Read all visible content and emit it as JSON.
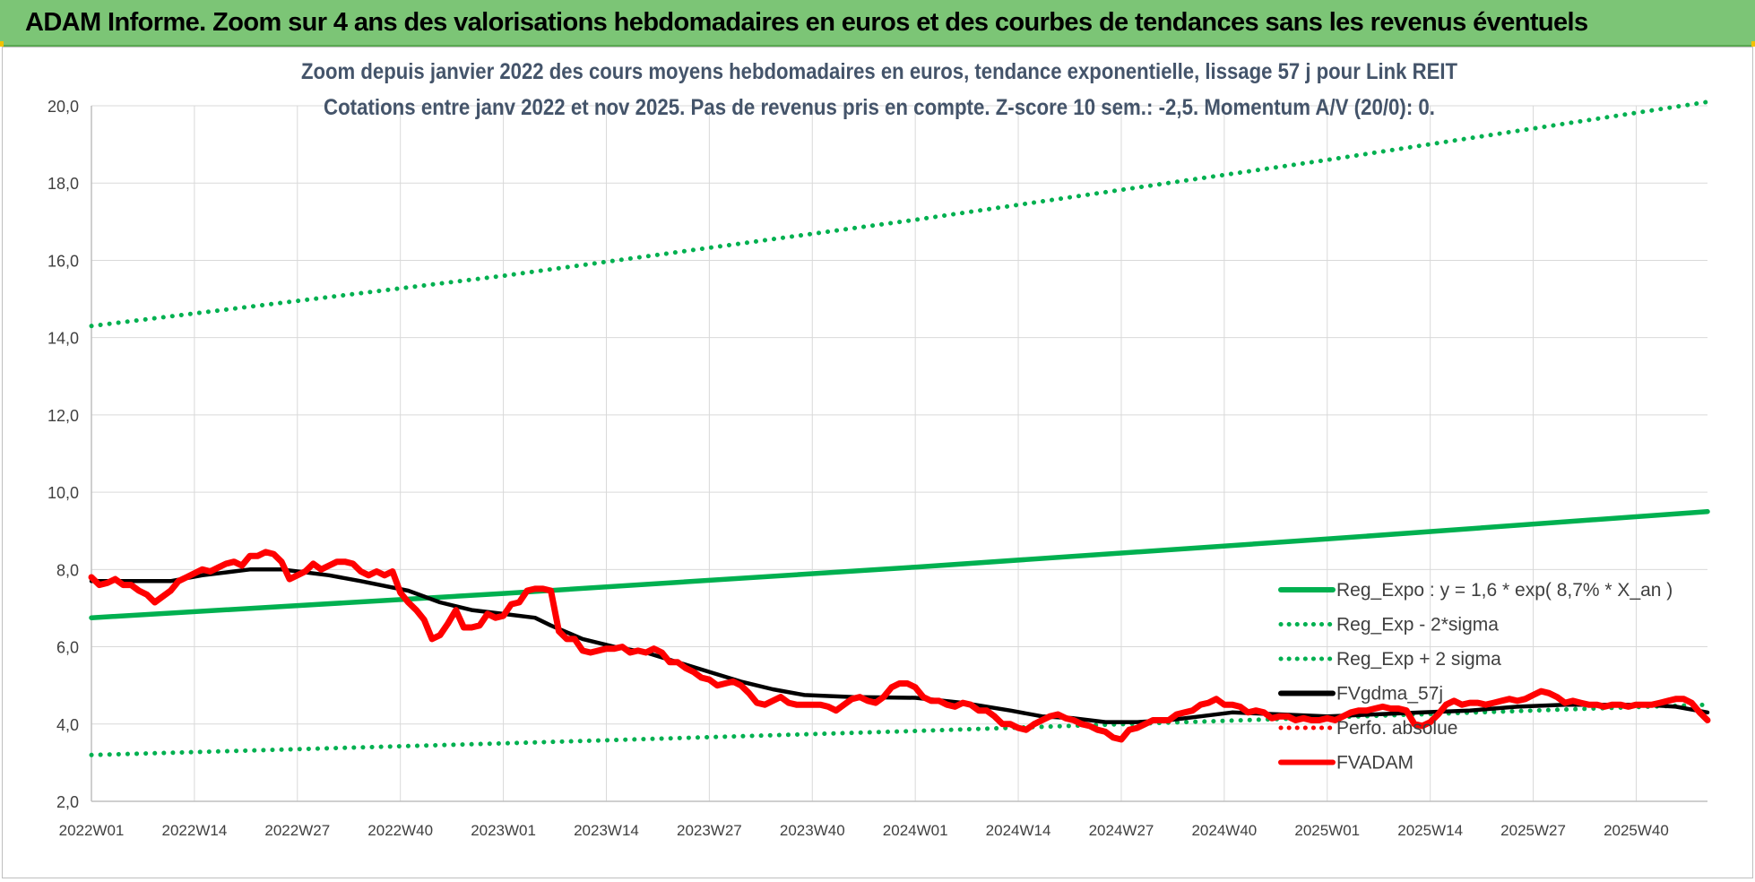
{
  "banner": {
    "title": "ADAM Informe. Zoom sur 4 ans des valorisations hebdomadaires en euros et des courbes de tendances sans les revenus éventuels"
  },
  "chart_data": {
    "type": "line",
    "title": "Zoom depuis janvier 2022 des cours moyens hebdomadaires en euros, tendance exponentielle, lissage 57 j pour Link REIT",
    "subtitle": "Cotations entre janv 2022 et nov 2025. Pas de revenus pris en compte. Z-score 10 sem.: -2,5. Momentum A/V (20/0): 0.",
    "xlabel": "",
    "ylabel": "",
    "ylim": [
      2.0,
      20.0
    ],
    "y_ticks": [
      "2,0",
      "4,0",
      "6,0",
      "8,0",
      "10,0",
      "12,0",
      "14,0",
      "16,0",
      "18,0",
      "20,0"
    ],
    "x_ticks": [
      "2022W01",
      "2022W14",
      "2022W27",
      "2022W40",
      "2023W01",
      "2023W14",
      "2023W27",
      "2023W40",
      "2024W01",
      "2024W14",
      "2024W27",
      "2024W40",
      "2025W01",
      "2025W14",
      "2025W27",
      "2025W40"
    ],
    "x_tick_weeks": [
      0,
      13,
      26,
      39,
      52,
      65,
      78,
      91,
      104,
      117,
      130,
      143,
      156,
      169,
      182,
      195
    ],
    "x_range_weeks": [
      0,
      204
    ],
    "grid": true,
    "legend": "right",
    "series": [
      {
        "name": "Reg_Expo : y = 1,6 * exp( 8,7% *  X_an )",
        "color": "#00b050",
        "style": "solid",
        "points": [
          [
            0,
            6.75
          ],
          [
            52,
            7.38
          ],
          [
            104,
            8.06
          ],
          [
            156,
            8.79
          ],
          [
            204,
            9.5
          ]
        ]
      },
      {
        "name": "Reg_Exp - 2*sigma",
        "color": "#00b050",
        "style": "dotted",
        "points": [
          [
            0,
            3.2
          ],
          [
            52,
            3.5
          ],
          [
            104,
            3.82
          ],
          [
            156,
            4.17
          ],
          [
            204,
            4.5
          ]
        ]
      },
      {
        "name": "Reg_Exp + 2 sigma",
        "color": "#00b050",
        "style": "dotted",
        "points": [
          [
            0,
            14.3
          ],
          [
            52,
            15.6
          ],
          [
            104,
            17.05
          ],
          [
            156,
            18.6
          ],
          [
            204,
            20.1
          ]
        ]
      },
      {
        "name": "FVgdma_57j",
        "color": "#000000",
        "style": "solid",
        "points": [
          [
            0,
            7.7
          ],
          [
            10,
            7.7
          ],
          [
            14,
            7.85
          ],
          [
            20,
            8.0
          ],
          [
            24,
            8.0
          ],
          [
            30,
            7.85
          ],
          [
            34,
            7.7
          ],
          [
            40,
            7.45
          ],
          [
            44,
            7.15
          ],
          [
            48,
            6.95
          ],
          [
            52,
            6.85
          ],
          [
            56,
            6.75
          ],
          [
            58,
            6.55
          ],
          [
            62,
            6.2
          ],
          [
            66,
            6.0
          ],
          [
            70,
            5.85
          ],
          [
            74,
            5.6
          ],
          [
            78,
            5.35
          ],
          [
            82,
            5.1
          ],
          [
            86,
            4.9
          ],
          [
            90,
            4.75
          ],
          [
            96,
            4.7
          ],
          [
            104,
            4.68
          ],
          [
            110,
            4.55
          ],
          [
            116,
            4.35
          ],
          [
            120,
            4.2
          ],
          [
            124,
            4.15
          ],
          [
            128,
            4.05
          ],
          [
            132,
            4.05
          ],
          [
            136,
            4.1
          ],
          [
            140,
            4.2
          ],
          [
            144,
            4.3
          ],
          [
            150,
            4.25
          ],
          [
            156,
            4.2
          ],
          [
            162,
            4.25
          ],
          [
            168,
            4.3
          ],
          [
            174,
            4.35
          ],
          [
            180,
            4.45
          ],
          [
            186,
            4.5
          ],
          [
            192,
            4.5
          ],
          [
            196,
            4.5
          ],
          [
            200,
            4.45
          ],
          [
            204,
            4.3
          ]
        ]
      },
      {
        "name": "Perfo. absolue",
        "color": "#ff0000",
        "style": "dotted",
        "points": []
      },
      {
        "name": "FVADAM",
        "color": "#ff0000",
        "style": "solid",
        "points": [
          [
            0,
            7.8
          ],
          [
            1,
            7.6
          ],
          [
            2,
            7.65
          ],
          [
            3,
            7.75
          ],
          [
            4,
            7.6
          ],
          [
            5,
            7.6
          ],
          [
            6,
            7.45
          ],
          [
            7,
            7.35
          ],
          [
            8,
            7.15
          ],
          [
            9,
            7.3
          ],
          [
            10,
            7.45
          ],
          [
            11,
            7.7
          ],
          [
            12,
            7.8
          ],
          [
            13,
            7.9
          ],
          [
            14,
            8.0
          ],
          [
            15,
            7.95
          ],
          [
            16,
            8.05
          ],
          [
            17,
            8.15
          ],
          [
            18,
            8.2
          ],
          [
            19,
            8.1
          ],
          [
            20,
            8.35
          ],
          [
            21,
            8.35
          ],
          [
            22,
            8.45
          ],
          [
            23,
            8.4
          ],
          [
            24,
            8.2
          ],
          [
            25,
            7.75
          ],
          [
            26,
            7.85
          ],
          [
            27,
            7.95
          ],
          [
            28,
            8.15
          ],
          [
            29,
            8.0
          ],
          [
            30,
            8.1
          ],
          [
            31,
            8.2
          ],
          [
            32,
            8.2
          ],
          [
            33,
            8.15
          ],
          [
            34,
            7.95
          ],
          [
            35,
            7.85
          ],
          [
            36,
            7.95
          ],
          [
            37,
            7.85
          ],
          [
            38,
            7.95
          ],
          [
            39,
            7.4
          ],
          [
            40,
            7.15
          ],
          [
            41,
            6.95
          ],
          [
            42,
            6.7
          ],
          [
            43,
            6.2
          ],
          [
            44,
            6.3
          ],
          [
            45,
            6.6
          ],
          [
            46,
            6.95
          ],
          [
            47,
            6.5
          ],
          [
            48,
            6.5
          ],
          [
            49,
            6.55
          ],
          [
            50,
            6.85
          ],
          [
            51,
            6.75
          ],
          [
            52,
            6.8
          ],
          [
            53,
            7.1
          ],
          [
            54,
            7.15
          ],
          [
            55,
            7.45
          ],
          [
            56,
            7.5
          ],
          [
            57,
            7.5
          ],
          [
            58,
            7.45
          ],
          [
            59,
            6.4
          ],
          [
            60,
            6.2
          ],
          [
            61,
            6.2
          ],
          [
            62,
            5.9
          ],
          [
            63,
            5.85
          ],
          [
            64,
            5.9
          ],
          [
            65,
            5.95
          ],
          [
            66,
            5.95
          ],
          [
            67,
            6.0
          ],
          [
            68,
            5.85
          ],
          [
            69,
            5.9
          ],
          [
            70,
            5.85
          ],
          [
            71,
            5.95
          ],
          [
            72,
            5.85
          ],
          [
            73,
            5.6
          ],
          [
            74,
            5.6
          ],
          [
            75,
            5.45
          ],
          [
            76,
            5.35
          ],
          [
            77,
            5.2
          ],
          [
            78,
            5.15
          ],
          [
            79,
            5.0
          ],
          [
            80,
            5.05
          ],
          [
            81,
            5.1
          ],
          [
            82,
            5.0
          ],
          [
            83,
            4.8
          ],
          [
            84,
            4.55
          ],
          [
            85,
            4.5
          ],
          [
            86,
            4.6
          ],
          [
            87,
            4.7
          ],
          [
            88,
            4.55
          ],
          [
            89,
            4.5
          ],
          [
            90,
            4.5
          ],
          [
            91,
            4.5
          ],
          [
            92,
            4.5
          ],
          [
            93,
            4.45
          ],
          [
            94,
            4.35
          ],
          [
            95,
            4.5
          ],
          [
            96,
            4.65
          ],
          [
            97,
            4.7
          ],
          [
            98,
            4.6
          ],
          [
            99,
            4.55
          ],
          [
            100,
            4.7
          ],
          [
            101,
            4.95
          ],
          [
            102,
            5.05
          ],
          [
            103,
            5.05
          ],
          [
            104,
            4.95
          ],
          [
            105,
            4.7
          ],
          [
            106,
            4.6
          ],
          [
            107,
            4.6
          ],
          [
            108,
            4.5
          ],
          [
            109,
            4.45
          ],
          [
            110,
            4.55
          ],
          [
            111,
            4.5
          ],
          [
            112,
            4.35
          ],
          [
            113,
            4.35
          ],
          [
            114,
            4.2
          ],
          [
            115,
            4.0
          ],
          [
            116,
            4.0
          ],
          [
            117,
            3.9
          ],
          [
            118,
            3.85
          ],
          [
            119,
            4.0
          ],
          [
            120,
            4.1
          ],
          [
            121,
            4.2
          ],
          [
            122,
            4.25
          ],
          [
            123,
            4.15
          ],
          [
            124,
            4.1
          ],
          [
            125,
            4.0
          ],
          [
            126,
            3.95
          ],
          [
            127,
            3.85
          ],
          [
            128,
            3.8
          ],
          [
            129,
            3.65
          ],
          [
            130,
            3.6
          ],
          [
            131,
            3.85
          ],
          [
            132,
            3.9
          ],
          [
            133,
            4.0
          ],
          [
            134,
            4.1
          ],
          [
            135,
            4.1
          ],
          [
            136,
            4.1
          ],
          [
            137,
            4.25
          ],
          [
            138,
            4.3
          ],
          [
            139,
            4.35
          ],
          [
            140,
            4.5
          ],
          [
            141,
            4.55
          ],
          [
            142,
            4.65
          ],
          [
            143,
            4.5
          ],
          [
            144,
            4.5
          ],
          [
            145,
            4.45
          ],
          [
            146,
            4.3
          ],
          [
            147,
            4.35
          ],
          [
            148,
            4.3
          ],
          [
            149,
            4.15
          ],
          [
            150,
            4.2
          ],
          [
            151,
            4.2
          ],
          [
            152,
            4.1
          ],
          [
            153,
            4.15
          ],
          [
            154,
            4.1
          ],
          [
            155,
            4.1
          ],
          [
            156,
            4.15
          ],
          [
            157,
            4.1
          ],
          [
            158,
            4.2
          ],
          [
            159,
            4.3
          ],
          [
            160,
            4.35
          ],
          [
            161,
            4.35
          ],
          [
            162,
            4.4
          ],
          [
            163,
            4.45
          ],
          [
            164,
            4.4
          ],
          [
            165,
            4.4
          ],
          [
            166,
            4.35
          ],
          [
            167,
            4.0
          ],
          [
            168,
            3.95
          ],
          [
            169,
            4.05
          ],
          [
            170,
            4.25
          ],
          [
            171,
            4.5
          ],
          [
            172,
            4.6
          ],
          [
            173,
            4.5
          ],
          [
            174,
            4.55
          ],
          [
            175,
            4.55
          ],
          [
            176,
            4.5
          ],
          [
            177,
            4.55
          ],
          [
            178,
            4.6
          ],
          [
            179,
            4.65
          ],
          [
            180,
            4.6
          ],
          [
            181,
            4.65
          ],
          [
            182,
            4.75
          ],
          [
            183,
            4.85
          ],
          [
            184,
            4.8
          ],
          [
            185,
            4.7
          ],
          [
            186,
            4.55
          ],
          [
            187,
            4.6
          ],
          [
            188,
            4.55
          ],
          [
            189,
            4.5
          ],
          [
            190,
            4.5
          ],
          [
            191,
            4.45
          ],
          [
            192,
            4.5
          ],
          [
            193,
            4.5
          ],
          [
            194,
            4.45
          ],
          [
            195,
            4.5
          ],
          [
            196,
            4.5
          ],
          [
            197,
            4.5
          ],
          [
            198,
            4.55
          ],
          [
            199,
            4.6
          ],
          [
            200,
            4.65
          ],
          [
            201,
            4.65
          ],
          [
            202,
            4.55
          ],
          [
            203,
            4.3
          ],
          [
            204,
            4.1
          ]
        ]
      }
    ]
  }
}
